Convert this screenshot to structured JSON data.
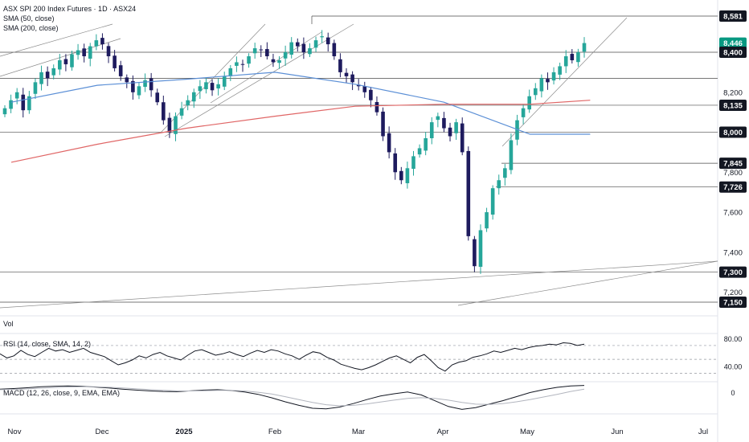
{
  "header": {
    "title": "ASX SPI 200 Index Futures · 1D · ASX24",
    "sma50_label": "SMA (50, close)",
    "sma200_label": "SMA (200, close)"
  },
  "panes": {
    "vol_label": "Vol",
    "rsi_label": "RSI (14, close, SMA, 14, 2)",
    "macd_label": "MACD (12, 26, close, 9, EMA, EMA)"
  },
  "colors": {
    "bull": "#26a69a",
    "bear": "#1e1b5e",
    "sma50": "#5b8fd6",
    "sma200": "#e06666",
    "grid_line": "#4a4a4a",
    "label_bg": "#131722",
    "price_bg": "#089981"
  },
  "chart_data": [
    {
      "type": "candlestick",
      "title": "ASX SPI 200 Index Futures · 1D · ASX24",
      "series": [
        {
          "name": "SMA (50, close)",
          "color": "#5b8fd6",
          "x": [
            "2024-11-01",
            "2024-12-01",
            "2025-01-01",
            "2025-02-01",
            "2025-03-01",
            "2025-04-01",
            "2025-05-01",
            "2025-05-22"
          ],
          "values": [
            8150,
            8235,
            8265,
            8300,
            8240,
            8150,
            7990,
            7990
          ]
        },
        {
          "name": "SMA (200, close)",
          "color": "#e06666",
          "x": [
            "2024-11-01",
            "2024-12-01",
            "2025-01-01",
            "2025-02-01",
            "2025-03-01",
            "2025-04-01",
            "2025-05-01",
            "2025-05-22"
          ],
          "values": [
            7850,
            7940,
            8020,
            8080,
            8130,
            8140,
            8140,
            8160
          ]
        }
      ],
      "ohlc_x_start": "2024-11-01",
      "ohlc_x_end": "2025-05-22",
      "closes": [
        8120,
        8160,
        8200,
        8110,
        8180,
        8250,
        8300,
        8270,
        8320,
        8360,
        8340,
        8390,
        8410,
        8380,
        8430,
        8460,
        8440,
        8380,
        8320,
        8280,
        8250,
        8200,
        8230,
        8260,
        8210,
        8150,
        8060,
        8000,
        8080,
        8120,
        8160,
        8200,
        8230,
        8250,
        8210,
        8240,
        8280,
        8320,
        8350,
        8340,
        8380,
        8420,
        8410,
        8380,
        8350,
        8360,
        8400,
        8450,
        8430,
        8400,
        8420,
        8460,
        8480,
        8440,
        8380,
        8300,
        8280,
        8250,
        8230,
        8200,
        8160,
        8100,
        7980,
        7900,
        7800,
        7760,
        7820,
        7880,
        7920,
        7970,
        8050,
        8080,
        8020,
        7980,
        8050,
        7900,
        7480,
        7330,
        7510,
        7600,
        7720,
        7760,
        7820,
        7960,
        8060,
        8120,
        8180,
        8220,
        8270,
        8250,
        8300,
        8330,
        8380,
        8360,
        8400,
        8446
      ],
      "levels": [
        8581,
        8400,
        8270,
        8135,
        8000,
        7845,
        7726,
        7300,
        7150
      ],
      "last_price": 8446,
      "y_ticks": [
        8581,
        8446,
        8400,
        8200,
        8135,
        8000,
        7845,
        7800,
        7726,
        7600,
        7400,
        7300,
        7200,
        7150
      ],
      "level_ticks": [
        8581,
        8400,
        8135,
        8000,
        7845,
        7726,
        7300,
        7150
      ],
      "x_ticks": [
        "Nov",
        "Dec",
        "2025",
        "Feb",
        "Mar",
        "Apr",
        "May",
        "Jun",
        "Jul"
      ],
      "ylim": [
        7130,
        8620
      ]
    },
    {
      "type": "line",
      "title": "RSI (14, close, SMA, 14, 2)",
      "y_ticks": [
        "80.00",
        "40.00"
      ],
      "ylim": [
        20,
        85
      ],
      "guides": [
        70,
        50,
        30
      ],
      "values": [
        58,
        52,
        55,
        63,
        57,
        54,
        60,
        66,
        62,
        64,
        60,
        63,
        66,
        60,
        57,
        54,
        48,
        42,
        45,
        49,
        55,
        52,
        57,
        60,
        55,
        52,
        49,
        56,
        62,
        64,
        60,
        56,
        58,
        61,
        57,
        54,
        59,
        63,
        60,
        64,
        62,
        58,
        55,
        50,
        56,
        61,
        59,
        53,
        49,
        43,
        40,
        37,
        35,
        38,
        42,
        47,
        52,
        55,
        50,
        45,
        53,
        57,
        48,
        38,
        33,
        42,
        46,
        48,
        53,
        55,
        58,
        62,
        60,
        63,
        66,
        64,
        67,
        69,
        70,
        72,
        71,
        74,
        73,
        70,
        72
      ]
    },
    {
      "type": "line",
      "title": "MACD (12, 26, close, 9, EMA, EMA)",
      "y_ticks": [
        "0"
      ],
      "ylim": [
        -170,
        80
      ],
      "series": [
        {
          "name": "MACD",
          "color": "#131722",
          "values": [
            30,
            35,
            42,
            50,
            55,
            58,
            55,
            48,
            40,
            30,
            22,
            15,
            10,
            8,
            15,
            22,
            25,
            18,
            5,
            -15,
            -45,
            -80,
            -110,
            -135,
            -140,
            -125,
            -95,
            -60,
            -30,
            -10,
            5,
            -20,
            -70,
            -120,
            -145,
            -130,
            -100,
            -70,
            -35,
            0,
            25,
            45,
            58,
            62
          ]
        },
        {
          "name": "Signal",
          "color": "#b2b5be",
          "values": [
            25,
            28,
            32,
            38,
            44,
            49,
            51,
            50,
            46,
            40,
            33,
            26,
            20,
            15,
            14,
            16,
            19,
            19,
            14,
            3,
            -12,
            -35,
            -60,
            -85,
            -105,
            -114,
            -110,
            -98,
            -82,
            -65,
            -50,
            -44,
            -50,
            -65,
            -85,
            -100,
            -102,
            -95,
            -80,
            -60,
            -38,
            -15,
            10,
            30
          ]
        }
      ]
    }
  ]
}
